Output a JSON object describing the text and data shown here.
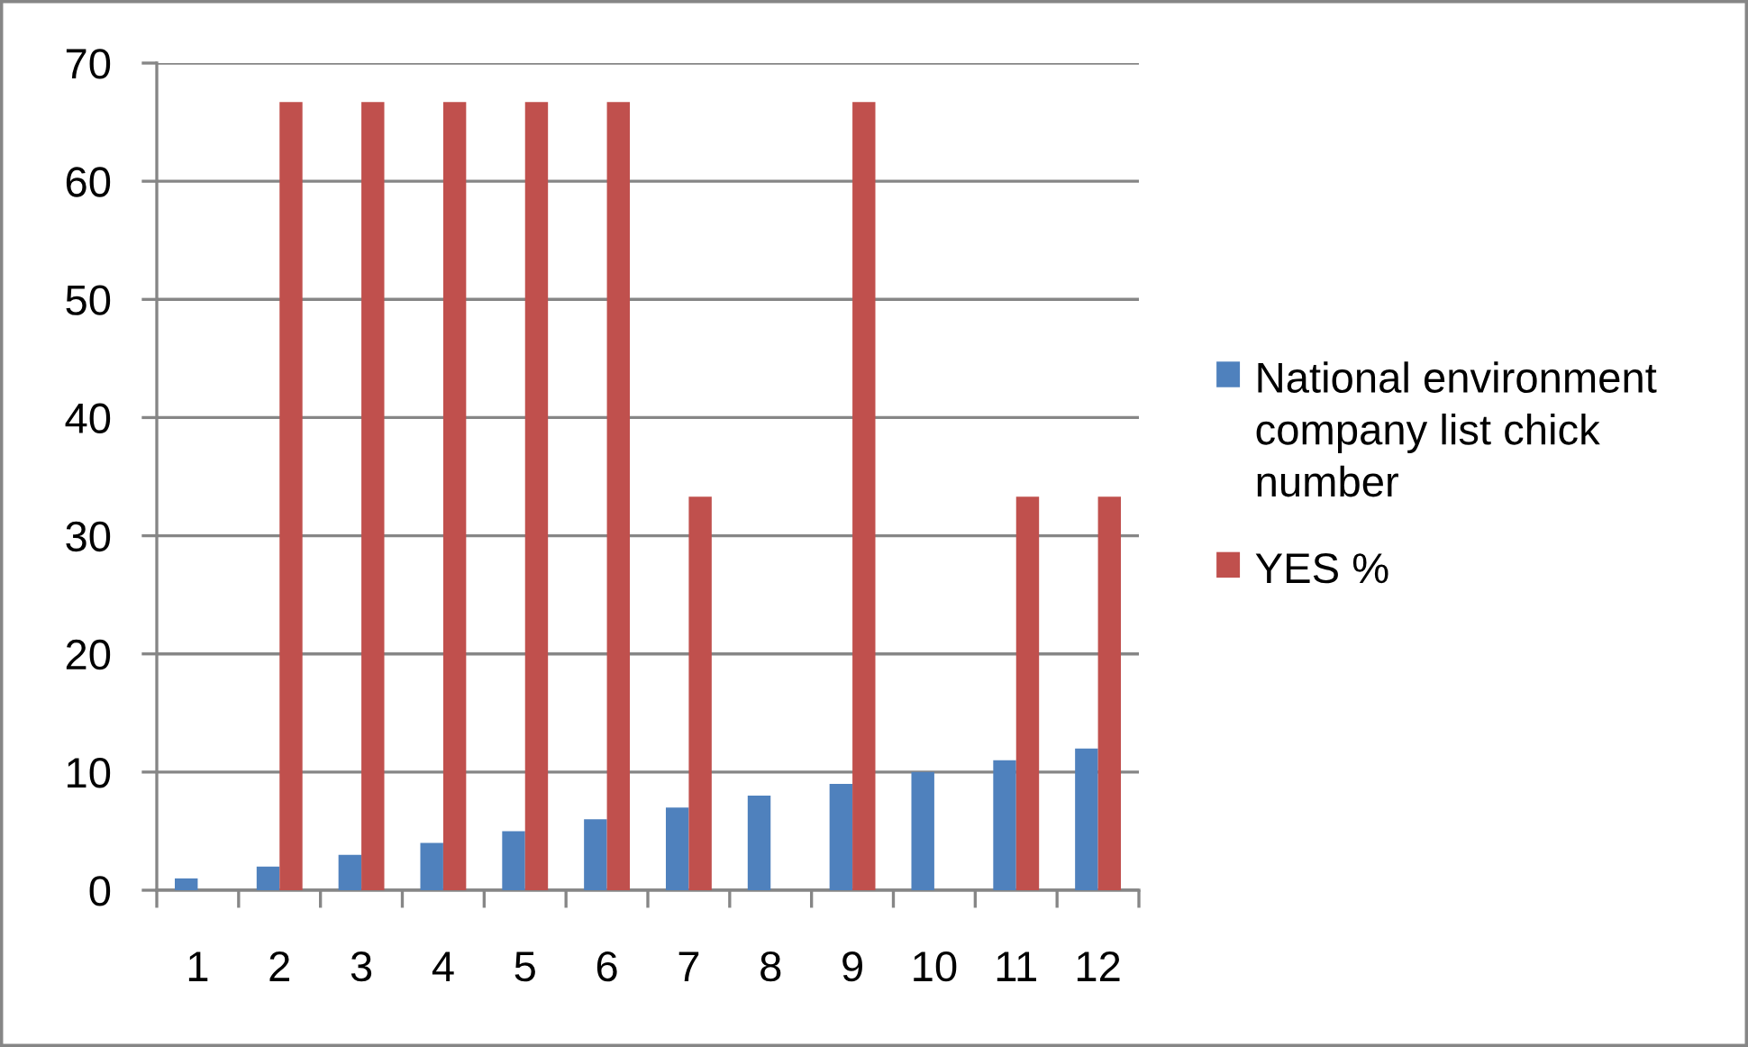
{
  "chart_data": {
    "type": "bar",
    "categories": [
      "1",
      "2",
      "3",
      "4",
      "5",
      "6",
      "7",
      "8",
      "9",
      "10",
      "11",
      "12"
    ],
    "series": [
      {
        "name": "National environment company list chick number",
        "color": "#4f81bd",
        "values": [
          1,
          2,
          3,
          4,
          5,
          6,
          7,
          8,
          9,
          10,
          11,
          12
        ]
      },
      {
        "name": "YES %",
        "color": "#c0504d",
        "values": [
          null,
          66.7,
          66.7,
          66.7,
          66.7,
          66.7,
          33.3,
          null,
          66.7,
          null,
          33.3,
          33.3
        ]
      }
    ],
    "ylim": [
      0,
      70
    ],
    "yticks": [
      0,
      10,
      20,
      30,
      40,
      50,
      60,
      70
    ],
    "grid": "y",
    "legend": "right"
  }
}
